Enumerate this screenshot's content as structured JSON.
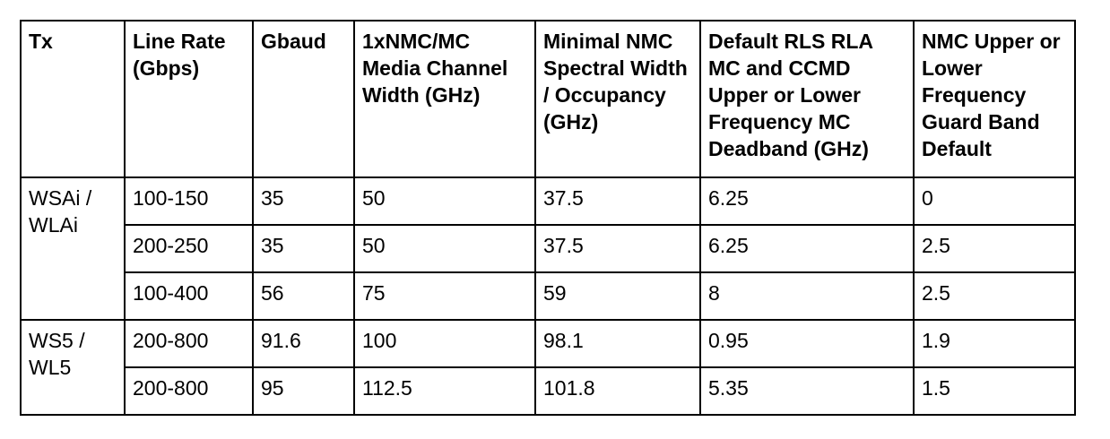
{
  "table": {
    "headers": [
      "Tx",
      "Line Rate (Gbps)",
      "Gbaud",
      "1xNMC/MC Media Channel Width (GHz)",
      "Minimal NMC Spectral Width / Occupancy (GHz)",
      "Default RLS RLA MC and CCMD Upper or Lower Frequency MC Deadband (GHz)",
      "NMC Upper or Lower Frequency Guard Band Default"
    ],
    "groups": [
      {
        "tx": "WSAi / WLAi",
        "rows": [
          [
            "100-150",
            "35",
            "50",
            "37.5",
            "6.25",
            "0"
          ],
          [
            "200-250",
            "35",
            "50",
            "37.5",
            "6.25",
            "2.5"
          ],
          [
            "100-400",
            "56",
            "75",
            "59",
            "8",
            "2.5"
          ]
        ]
      },
      {
        "tx": "WS5 / WL5",
        "rows": [
          [
            "200-800",
            "91.6",
            "100",
            "98.1",
            "0.95",
            "1.9"
          ],
          [
            "200-800",
            "95",
            "112.5",
            "101.8",
            "5.35",
            "1.5"
          ]
        ]
      }
    ]
  }
}
